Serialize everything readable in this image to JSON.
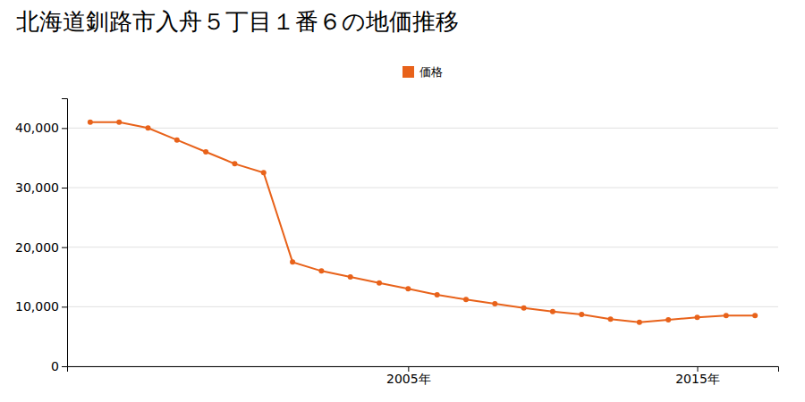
{
  "chart_data": {
    "type": "line",
    "title": "北海道釧路市入舟５丁目１番６の地価推移",
    "x": [
      1994,
      1995,
      1996,
      1997,
      1998,
      1999,
      2000,
      2001,
      2002,
      2003,
      2004,
      2005,
      2006,
      2007,
      2008,
      2009,
      2010,
      2011,
      2012,
      2013,
      2014,
      2015,
      2016,
      2017
    ],
    "series": [
      {
        "name": "価格",
        "color": "#E8621A",
        "marker": "circle",
        "values": [
          41000,
          41000,
          40000,
          38000,
          36000,
          34000,
          32500,
          17500,
          16000,
          15000,
          14000,
          13000,
          12000,
          11200,
          10500,
          9800,
          9200,
          8700,
          7900,
          7400,
          7800,
          8200,
          8500,
          8500
        ]
      }
    ],
    "xlim": [
      1993.2,
      2017.8
    ],
    "xticks": [
      {
        "value": 2005,
        "label": "2005年"
      },
      {
        "value": 2015,
        "label": "2015年"
      }
    ],
    "ylim": [
      0,
      45000
    ],
    "yticks": [
      0,
      {
        "value": 10000,
        "label": "10,000"
      },
      {
        "value": 20000,
        "label": "20,000"
      },
      {
        "value": 30000,
        "label": "30,000"
      },
      {
        "value": 40000,
        "label": "40,000"
      }
    ],
    "grid": true,
    "legend": "top"
  }
}
